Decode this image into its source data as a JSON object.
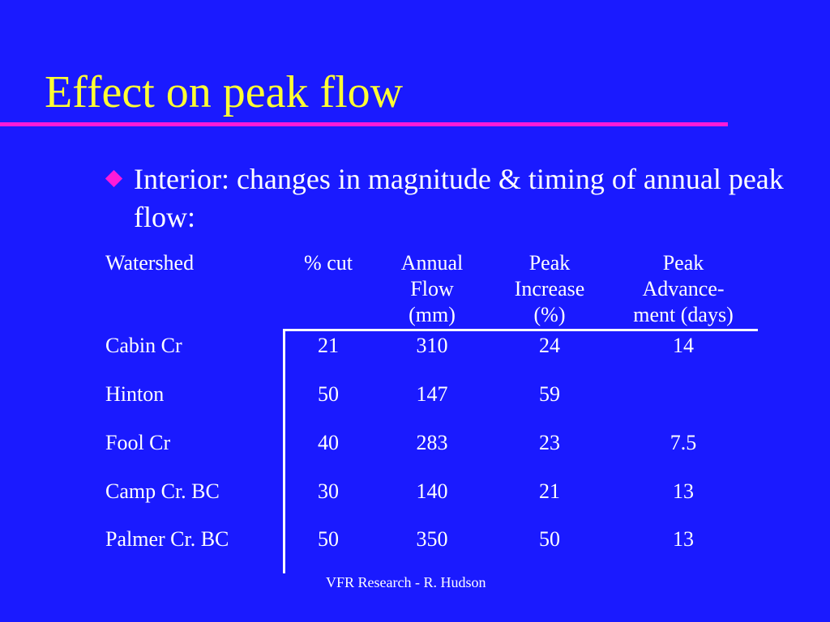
{
  "slide": {
    "title": "Effect on peak flow",
    "bullet": "Interior: changes in magnitude & timing of annual peak flow:",
    "footer": "VFR Research - R. Hudson",
    "colors": {
      "background": "#1a1aff",
      "title": "#ffff33",
      "accent": "#ff1ad9",
      "text": "#ffffff"
    }
  },
  "table": {
    "headers": [
      [
        "Watershed"
      ],
      [
        "% cut"
      ],
      [
        "Annual",
        "Flow",
        "(mm)"
      ],
      [
        "Peak",
        "Increase",
        "(%)"
      ],
      [
        "Peak",
        "Advance-",
        "ment (days)"
      ]
    ],
    "rows": [
      [
        "Cabin Cr",
        "21",
        "310",
        "24",
        "14"
      ],
      [
        "Hinton",
        "50",
        "147",
        "59",
        ""
      ],
      [
        "Fool Cr",
        "40",
        "283",
        "23",
        "7.5"
      ],
      [
        "Camp Cr. BC",
        "30",
        "140",
        "21",
        "13"
      ],
      [
        "Palmer Cr. BC",
        "50",
        "350",
        "50",
        "13"
      ]
    ]
  }
}
